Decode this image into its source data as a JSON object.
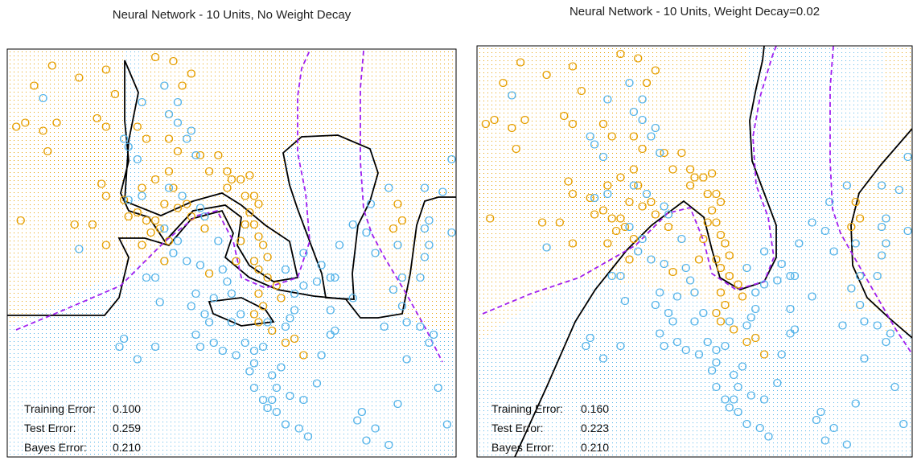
{
  "colors": {
    "orange": "#E69F00",
    "blue": "#56B4E9",
    "boundary": "#000000",
    "bayes": "#A020F0"
  },
  "chart_data": [
    {
      "type": "scatter",
      "title": "Neural Network - 10 Units, No Weight Decay",
      "grid": "dotted class-region background (orange vs blue)",
      "legend": "none",
      "point_symbol": "O",
      "errors": [
        {
          "label": "Training Error:",
          "value": "0.100"
        },
        {
          "label": "Test Error:",
          "value": "0.259"
        },
        {
          "label": "Bayes Error:",
          "value": "0.210"
        }
      ],
      "xlim": [
        0,
        1
      ],
      "ylim": [
        0,
        1
      ],
      "series": [
        {
          "class": "orange",
          "points": [
            [
              0.1,
              0.96
            ],
            [
              0.16,
              0.93
            ],
            [
              0.06,
              0.91
            ],
            [
              0.02,
              0.81
            ],
            [
              0.04,
              0.82
            ],
            [
              0.08,
              0.8
            ],
            [
              0.11,
              0.82
            ],
            [
              0.09,
              0.75
            ],
            [
              0.22,
              0.95
            ],
            [
              0.33,
              0.98
            ],
            [
              0.37,
              0.97
            ],
            [
              0.41,
              0.94
            ],
            [
              0.39,
              0.91
            ],
            [
              0.24,
              0.89
            ],
            [
              0.2,
              0.83
            ],
            [
              0.22,
              0.81
            ],
            [
              0.29,
              0.81
            ],
            [
              0.31,
              0.78
            ],
            [
              0.36,
              0.78
            ],
            [
              0.38,
              0.75
            ],
            [
              0.43,
              0.74
            ],
            [
              0.47,
              0.74
            ],
            [
              0.45,
              0.7
            ],
            [
              0.36,
              0.7
            ],
            [
              0.33,
              0.68
            ],
            [
              0.3,
              0.66
            ],
            [
              0.37,
              0.66
            ],
            [
              0.21,
              0.67
            ],
            [
              0.22,
              0.64
            ],
            [
              0.26,
              0.63
            ],
            [
              0.27,
              0.59
            ],
            [
              0.29,
              0.6
            ],
            [
              0.31,
              0.58
            ],
            [
              0.33,
              0.58
            ],
            [
              0.35,
              0.62
            ],
            [
              0.38,
              0.61
            ],
            [
              0.4,
              0.62
            ],
            [
              0.41,
              0.59
            ],
            [
              0.32,
              0.55
            ],
            [
              0.34,
              0.56
            ],
            [
              0.3,
              0.52
            ],
            [
              0.36,
              0.53
            ],
            [
              0.22,
              0.52
            ],
            [
              0.03,
              0.58
            ],
            [
              0.15,
              0.57
            ],
            [
              0.19,
              0.57
            ],
            [
              0.49,
              0.7
            ],
            [
              0.5,
              0.68
            ],
            [
              0.52,
              0.68
            ],
            [
              0.54,
              0.69
            ],
            [
              0.53,
              0.64
            ],
            [
              0.55,
              0.64
            ],
            [
              0.56,
              0.62
            ],
            [
              0.49,
              0.66
            ],
            [
              0.54,
              0.6
            ],
            [
              0.53,
              0.57
            ],
            [
              0.55,
              0.57
            ],
            [
              0.56,
              0.54
            ],
            [
              0.52,
              0.53
            ],
            [
              0.57,
              0.52
            ],
            [
              0.58,
              0.49
            ],
            [
              0.55,
              0.48
            ],
            [
              0.51,
              0.48
            ],
            [
              0.56,
              0.46
            ],
            [
              0.58,
              0.44
            ],
            [
              0.6,
              0.42
            ],
            [
              0.44,
              0.56
            ],
            [
              0.45,
              0.45
            ],
            [
              0.56,
              0.4
            ],
            [
              0.57,
              0.37
            ],
            [
              0.61,
              0.39
            ],
            [
              0.55,
              0.35
            ],
            [
              0.56,
              0.33
            ],
            [
              0.59,
              0.31
            ],
            [
              0.62,
              0.28
            ],
            [
              0.64,
              0.29
            ],
            [
              0.35,
              0.48
            ],
            [
              0.66,
              0.25
            ],
            [
              0.87,
              0.62
            ],
            [
              0.88,
              0.58
            ],
            [
              0.86,
              0.56
            ]
          ]
        },
        {
          "class": "blue",
          "points": [
            [
              0.35,
              0.91
            ],
            [
              0.38,
              0.87
            ],
            [
              0.36,
              0.84
            ],
            [
              0.38,
              0.82
            ],
            [
              0.41,
              0.8
            ],
            [
              0.4,
              0.78
            ],
            [
              0.42,
              0.74
            ],
            [
              0.26,
              0.78
            ],
            [
              0.27,
              0.76
            ],
            [
              0.29,
              0.73
            ],
            [
              0.36,
              0.66
            ],
            [
              0.39,
              0.64
            ],
            [
              0.27,
              0.63
            ],
            [
              0.3,
              0.64
            ],
            [
              0.43,
              0.61
            ],
            [
              0.44,
              0.59
            ],
            [
              0.35,
              0.56
            ],
            [
              0.38,
              0.53
            ],
            [
              0.37,
              0.5
            ],
            [
              0.4,
              0.48
            ],
            [
              0.43,
              0.47
            ],
            [
              0.47,
              0.53
            ],
            [
              0.48,
              0.46
            ],
            [
              0.49,
              0.43
            ],
            [
              0.5,
              0.4
            ],
            [
              0.42,
              0.4
            ],
            [
              0.41,
              0.37
            ],
            [
              0.44,
              0.35
            ],
            [
              0.45,
              0.33
            ],
            [
              0.42,
              0.3
            ],
            [
              0.43,
              0.27
            ],
            [
              0.46,
              0.28
            ],
            [
              0.48,
              0.26
            ],
            [
              0.5,
              0.33
            ],
            [
              0.52,
              0.35
            ],
            [
              0.51,
              0.25
            ],
            [
              0.53,
              0.28
            ],
            [
              0.55,
              0.26
            ],
            [
              0.55,
              0.23
            ],
            [
              0.57,
              0.27
            ],
            [
              0.59,
              0.2
            ],
            [
              0.61,
              0.22
            ],
            [
              0.6,
              0.17
            ],
            [
              0.57,
              0.14
            ],
            [
              0.55,
              0.17
            ],
            [
              0.58,
              0.12
            ],
            [
              0.63,
              0.15
            ],
            [
              0.66,
              0.14
            ],
            [
              0.6,
              0.11
            ],
            [
              0.62,
              0.08
            ],
            [
              0.65,
              0.07
            ],
            [
              0.67,
              0.05
            ],
            [
              0.69,
              0.18
            ],
            [
              0.7,
              0.25
            ],
            [
              0.72,
              0.3
            ],
            [
              0.72,
              0.44
            ],
            [
              0.73,
              0.44
            ],
            [
              0.74,
              0.52
            ],
            [
              0.77,
              0.57
            ],
            [
              0.8,
              0.55
            ],
            [
              0.82,
              0.5
            ],
            [
              0.81,
              0.62
            ],
            [
              0.85,
              0.66
            ],
            [
              0.87,
              0.52
            ],
            [
              0.88,
              0.44
            ],
            [
              0.92,
              0.44
            ],
            [
              0.93,
              0.49
            ],
            [
              0.94,
              0.52
            ],
            [
              0.93,
              0.56
            ],
            [
              0.94,
              0.58
            ],
            [
              0.93,
              0.66
            ],
            [
              0.97,
              0.65
            ],
            [
              0.99,
              0.73
            ],
            [
              0.99,
              0.55
            ],
            [
              0.95,
              0.3
            ],
            [
              0.94,
              0.28
            ],
            [
              0.89,
              0.33
            ],
            [
              0.77,
              0.39
            ],
            [
              0.72,
              0.36
            ],
            [
              0.73,
              0.31
            ],
            [
              0.66,
              0.5
            ],
            [
              0.7,
              0.47
            ],
            [
              0.69,
              0.43
            ],
            [
              0.66,
              0.42
            ],
            [
              0.62,
              0.46
            ],
            [
              0.64,
              0.4
            ],
            [
              0.64,
              0.36
            ],
            [
              0.63,
              0.34
            ],
            [
              0.58,
              0.33
            ],
            [
              0.62,
              0.32
            ],
            [
              0.34,
              0.38
            ],
            [
              0.46,
              0.39
            ],
            [
              0.33,
              0.44
            ],
            [
              0.31,
              0.44
            ],
            [
              0.54,
              0.21
            ],
            [
              0.59,
              0.14
            ],
            [
              0.26,
              0.29
            ],
            [
              0.25,
              0.27
            ],
            [
              0.33,
              0.27
            ],
            [
              0.29,
              0.24
            ],
            [
              0.16,
              0.51
            ],
            [
              0.08,
              0.88
            ],
            [
              0.3,
              0.87
            ],
            [
              0.78,
              0.09
            ],
            [
              0.79,
              0.11
            ],
            [
              0.8,
              0.04
            ],
            [
              0.85,
              0.03
            ],
            [
              0.82,
              0.07
            ],
            [
              0.87,
              0.13
            ],
            [
              0.86,
              0.41
            ],
            [
              0.88,
              0.37
            ],
            [
              0.89,
              0.24
            ],
            [
              0.84,
              0.32
            ],
            [
              0.96,
              0.17
            ],
            [
              0.98,
              0.08
            ],
            [
              0.92,
              0.32
            ]
          ]
        }
      ]
    },
    {
      "type": "scatter",
      "title": "Neural Network - 10 Units, Weight Decay=0.02",
      "grid": "dotted class-region background (orange vs blue)",
      "legend": "none",
      "point_symbol": "O",
      "errors": [
        {
          "label": "Training Error:",
          "value": "0.160"
        },
        {
          "label": "Test Error:",
          "value": "0.223"
        },
        {
          "label": "Bayes Error:",
          "value": "0.210"
        }
      ],
      "xlim": [
        0,
        1
      ],
      "ylim": [
        0,
        1
      ],
      "same_points_as_panel": 1
    }
  ]
}
